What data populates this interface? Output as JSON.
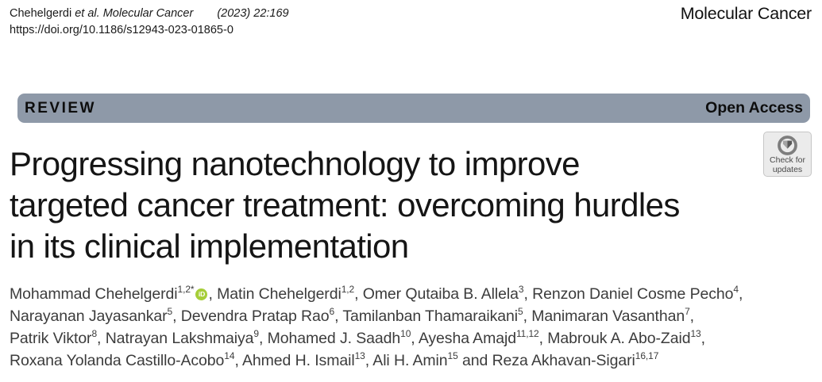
{
  "header": {
    "citation_author": "Chehelgerdi",
    "citation_etal_journal": "et al. Molecular Cancer",
    "citation_ref": "(2023) 22:169",
    "doi": "https://doi.org/10.1186/s12943-023-01865-0",
    "journal_name": "Molecular Cancer"
  },
  "banner": {
    "article_type": "REVIEW",
    "access_label": "Open Access",
    "bg_color": "#8E99A8"
  },
  "update_badge": {
    "icon": "crossmark-circle-icon",
    "label_line1": "Check for",
    "label_line2": "updates"
  },
  "article": {
    "title_lines": [
      "Progressing nanotechnology to improve",
      "targeted cancer treatment: overcoming hurdles",
      "in its clinical implementation"
    ],
    "orcid_color": "#A6CE39",
    "orcid_label": "iD",
    "authors": [
      {
        "name": "Mohammad Chehelgerdi",
        "sup": "1,2*",
        "orcid": true
      },
      {
        "name": "Matin Chehelgerdi",
        "sup": "1,2"
      },
      {
        "name": "Omer Qutaiba B. Allela",
        "sup": "3"
      },
      {
        "name": "Renzon Daniel Cosme Pecho",
        "sup": "4",
        "line_break": true
      },
      {
        "name": "Narayanan Jayasankar",
        "sup": "5"
      },
      {
        "name": "Devendra Pratap Rao",
        "sup": "6"
      },
      {
        "name": "Tamilanban Thamaraikani",
        "sup": "5"
      },
      {
        "name": "Manimaran Vasanthan",
        "sup": "7",
        "line_break": true
      },
      {
        "name": "Patrik Viktor",
        "sup": "8"
      },
      {
        "name": "Natrayan Lakshmaiya",
        "sup": "9"
      },
      {
        "name": "Mohamed J. Saadh",
        "sup": "10"
      },
      {
        "name": "Ayesha Amajd",
        "sup": "11,12"
      },
      {
        "name": "Mabrouk A. Abo-Zaid",
        "sup": "13",
        "line_break": true
      },
      {
        "name": "Roxana Yolanda Castillo-Acobo",
        "sup": "14"
      },
      {
        "name": "Ahmed H. Ismail",
        "sup": "13"
      },
      {
        "name": "Ali H. Amin",
        "sup": "15"
      },
      {
        "name": "Reza Akhavan-Sigari",
        "sup": "16,17"
      }
    ]
  }
}
